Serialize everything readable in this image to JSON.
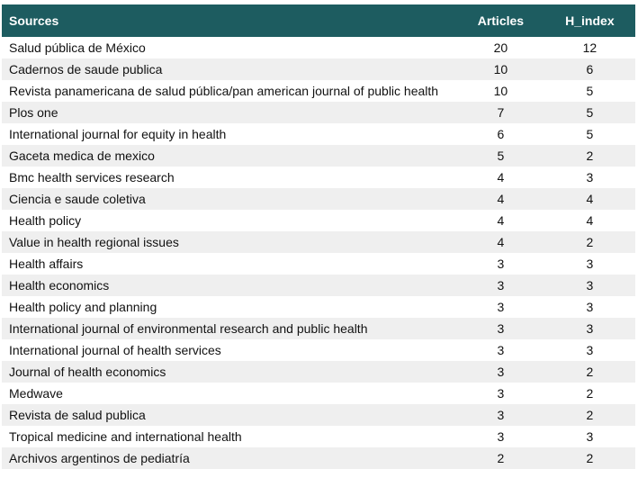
{
  "table": {
    "header": [
      "Sources",
      "Articles",
      "H_index"
    ],
    "rows": [
      [
        "Salud pública de México",
        20,
        12
      ],
      [
        "Cadernos de saude publica",
        10,
        6
      ],
      [
        "Revista panamericana de salud pública/pan american journal of public health",
        10,
        5
      ],
      [
        "Plos one",
        7,
        5
      ],
      [
        "International journal for equity in health",
        6,
        5
      ],
      [
        "Gaceta medica de mexico",
        5,
        2
      ],
      [
        "Bmc health services research",
        4,
        3
      ],
      [
        "Ciencia e saude coletiva",
        4,
        4
      ],
      [
        "Health policy",
        4,
        4
      ],
      [
        "Value in health regional issues",
        4,
        2
      ],
      [
        "Health affairs",
        3,
        3
      ],
      [
        "Health economics",
        3,
        3
      ],
      [
        "Health policy and planning",
        3,
        3
      ],
      [
        "International journal of environmental research and public health",
        3,
        3
      ],
      [
        "International journal of health services",
        3,
        3
      ],
      [
        "Journal of health economics",
        3,
        2
      ],
      [
        "Medwave",
        3,
        2
      ],
      [
        "Revista de salud publica",
        3,
        2
      ],
      [
        "Tropical medicine and international health",
        3,
        3
      ],
      [
        "Archivos argentinos de pediatría",
        2,
        2
      ]
    ]
  }
}
